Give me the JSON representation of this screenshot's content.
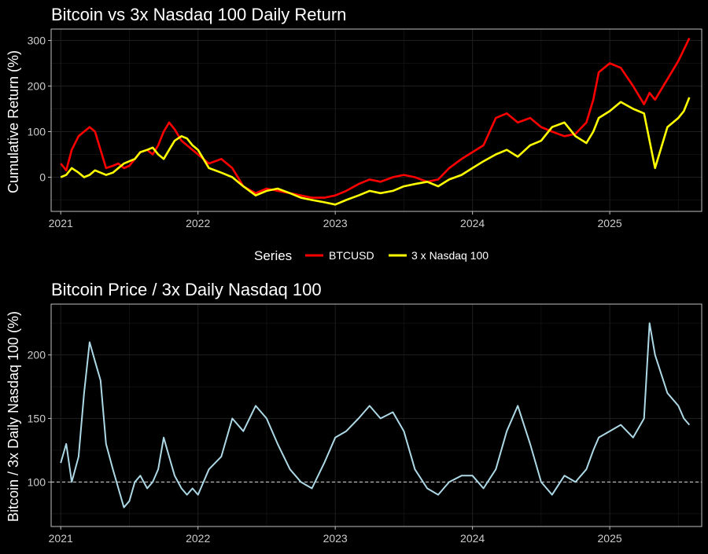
{
  "chart_data": [
    {
      "type": "line",
      "title": "Bitcoin vs 3x Nasdaq 100 Daily Return",
      "xlabel": "",
      "ylabel": "Cumulative Return (%)",
      "xlim": [
        2020.93,
        2025.67
      ],
      "ylim": [
        -75,
        325
      ],
      "x_ticks": [
        2021,
        2022,
        2023,
        2024,
        2025
      ],
      "x_tick_labels": [
        "2021",
        "2022",
        "2023",
        "2024",
        "2025"
      ],
      "y_ticks": [
        0,
        100,
        200,
        300
      ],
      "y_tick_labels": [
        "0",
        "100",
        "200",
        "300"
      ],
      "grid": true,
      "legend": {
        "title": "Series",
        "position": "bottom",
        "entries": [
          {
            "name": "BTCUSD",
            "color": "#ff0000"
          },
          {
            "name": "3 x Nasdaq 100",
            "color": "#ffff00"
          }
        ]
      },
      "series": [
        {
          "name": "BTCUSD",
          "color": "#ff0000",
          "x": [
            2021.0,
            2021.04,
            2021.08,
            2021.13,
            2021.17,
            2021.21,
            2021.25,
            2021.29,
            2021.33,
            2021.38,
            2021.42,
            2021.46,
            2021.5,
            2021.54,
            2021.58,
            2021.63,
            2021.67,
            2021.71,
            2021.75,
            2021.79,
            2021.83,
            2021.88,
            2021.92,
            2021.96,
            2022.0,
            2022.08,
            2022.17,
            2022.25,
            2022.33,
            2022.42,
            2022.5,
            2022.58,
            2022.67,
            2022.75,
            2022.83,
            2022.92,
            2023.0,
            2023.08,
            2023.17,
            2023.25,
            2023.33,
            2023.42,
            2023.5,
            2023.58,
            2023.67,
            2023.75,
            2023.83,
            2023.92,
            2024.0,
            2024.08,
            2024.17,
            2024.25,
            2024.33,
            2024.42,
            2024.5,
            2024.58,
            2024.67,
            2024.75,
            2024.83,
            2024.88,
            2024.92,
            2025.0,
            2025.08,
            2025.17,
            2025.25,
            2025.29,
            2025.33,
            2025.42,
            2025.5,
            2025.54,
            2025.58
          ],
          "values": [
            30,
            15,
            60,
            90,
            100,
            110,
            100,
            60,
            20,
            25,
            30,
            20,
            25,
            40,
            55,
            60,
            50,
            70,
            100,
            120,
            105,
            80,
            70,
            60,
            50,
            30,
            40,
            20,
            -20,
            -35,
            -25,
            -30,
            -35,
            -40,
            -45,
            -45,
            -40,
            -30,
            -15,
            -5,
            -10,
            0,
            5,
            0,
            -10,
            -5,
            20,
            40,
            55,
            70,
            130,
            140,
            120,
            130,
            110,
            100,
            90,
            95,
            120,
            170,
            230,
            250,
            240,
            200,
            160,
            185,
            170,
            215,
            255,
            280,
            305
          ]
        },
        {
          "name": "3 x Nasdaq 100",
          "color": "#ffff00",
          "x": [
            2021.0,
            2021.04,
            2021.08,
            2021.13,
            2021.17,
            2021.21,
            2021.25,
            2021.29,
            2021.33,
            2021.38,
            2021.42,
            2021.46,
            2021.5,
            2021.54,
            2021.58,
            2021.63,
            2021.67,
            2021.71,
            2021.75,
            2021.79,
            2021.83,
            2021.88,
            2021.92,
            2021.96,
            2022.0,
            2022.08,
            2022.17,
            2022.25,
            2022.33,
            2022.42,
            2022.5,
            2022.58,
            2022.67,
            2022.75,
            2022.83,
            2022.92,
            2023.0,
            2023.08,
            2023.17,
            2023.25,
            2023.33,
            2023.42,
            2023.5,
            2023.58,
            2023.67,
            2023.75,
            2023.83,
            2023.92,
            2024.0,
            2024.08,
            2024.17,
            2024.25,
            2024.33,
            2024.42,
            2024.5,
            2024.58,
            2024.67,
            2024.75,
            2024.83,
            2024.88,
            2024.92,
            2025.0,
            2025.08,
            2025.17,
            2025.25,
            2025.29,
            2025.33,
            2025.42,
            2025.5,
            2025.54,
            2025.58
          ],
          "values": [
            0,
            5,
            20,
            10,
            0,
            5,
            15,
            10,
            5,
            10,
            20,
            30,
            35,
            40,
            55,
            60,
            65,
            50,
            40,
            60,
            80,
            90,
            85,
            70,
            60,
            20,
            10,
            0,
            -20,
            -40,
            -30,
            -25,
            -35,
            -45,
            -50,
            -55,
            -60,
            -50,
            -40,
            -30,
            -35,
            -30,
            -20,
            -15,
            -10,
            -20,
            -5,
            5,
            20,
            35,
            50,
            60,
            45,
            70,
            80,
            110,
            120,
            90,
            75,
            100,
            130,
            145,
            165,
            150,
            140,
            80,
            20,
            110,
            130,
            145,
            175
          ]
        }
      ]
    },
    {
      "type": "line",
      "title": "Bitcoin Price / 3x Daily Nasdaq 100",
      "xlabel": "",
      "ylabel": "Bitcoin / 3x Daily Nasdaq 100 (%)",
      "xlim": [
        2020.93,
        2025.67
      ],
      "ylim": [
        65,
        240
      ],
      "x_ticks": [
        2021,
        2022,
        2023,
        2024,
        2025
      ],
      "x_tick_labels": [
        "2021",
        "2022",
        "2023",
        "2024",
        "2025"
      ],
      "y_ticks": [
        100,
        150,
        200
      ],
      "y_tick_labels": [
        "100",
        "150",
        "200"
      ],
      "grid": true,
      "reference_line": {
        "y": 100,
        "style": "dashed",
        "color": "#ffffff"
      },
      "series": [
        {
          "name": "",
          "color": "#add8e6",
          "x": [
            2021.0,
            2021.04,
            2021.08,
            2021.13,
            2021.17,
            2021.21,
            2021.25,
            2021.29,
            2021.33,
            2021.38,
            2021.42,
            2021.46,
            2021.5,
            2021.54,
            2021.58,
            2021.63,
            2021.67,
            2021.71,
            2021.75,
            2021.79,
            2021.83,
            2021.88,
            2021.92,
            2021.96,
            2022.0,
            2022.08,
            2022.17,
            2022.25,
            2022.33,
            2022.42,
            2022.5,
            2022.58,
            2022.67,
            2022.75,
            2022.83,
            2022.92,
            2023.0,
            2023.08,
            2023.17,
            2023.25,
            2023.33,
            2023.42,
            2023.5,
            2023.58,
            2023.67,
            2023.75,
            2023.83,
            2023.92,
            2024.0,
            2024.08,
            2024.17,
            2024.25,
            2024.33,
            2024.42,
            2024.5,
            2024.58,
            2024.67,
            2024.75,
            2024.83,
            2024.88,
            2024.92,
            2025.0,
            2025.08,
            2025.17,
            2025.25,
            2025.29,
            2025.33,
            2025.42,
            2025.5,
            2025.54,
            2025.58
          ],
          "values": [
            115,
            130,
            100,
            120,
            170,
            210,
            195,
            180,
            130,
            110,
            95,
            80,
            85,
            100,
            105,
            95,
            100,
            110,
            135,
            120,
            105,
            95,
            90,
            95,
            90,
            110,
            120,
            150,
            140,
            160,
            150,
            130,
            110,
            100,
            95,
            115,
            135,
            140,
            150,
            160,
            150,
            155,
            140,
            110,
            95,
            90,
            100,
            105,
            105,
            95,
            110,
            140,
            160,
            130,
            100,
            90,
            105,
            100,
            110,
            125,
            135,
            140,
            145,
            135,
            150,
            225,
            200,
            170,
            160,
            150,
            145
          ]
        }
      ]
    }
  ]
}
